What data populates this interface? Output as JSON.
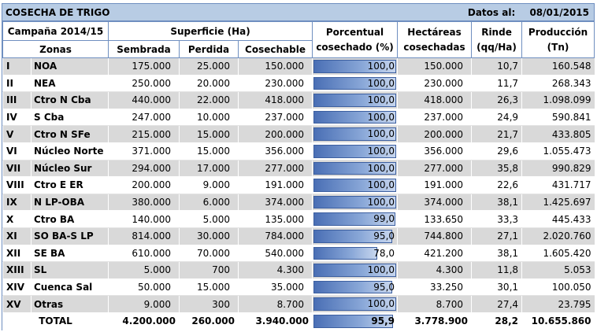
{
  "title": "COSECHA DE TRIGO",
  "date_label": "Datos al:",
  "date_value": "08/01/2015",
  "headers": {
    "campaign": "Campaña 2014/15",
    "zonas": "Zonas",
    "superficie": "Superficie (Ha)",
    "sembrada": "Sembrada",
    "perdida": "Perdida",
    "cosechable": "Cosechable",
    "porcentual": "Porcentual",
    "cosechado": "cosechado (%)",
    "hectareas": "Hectáreas",
    "cosechadas": "cosechadas",
    "rinde": "Rinde",
    "rinde_unit": "(qq/Ha)",
    "produccion": "Producción",
    "produccion_unit": "(Tn)"
  },
  "rows": [
    {
      "num": "I",
      "zona": "NOA",
      "sembrada": "175.000",
      "perdida": "25.000",
      "cosechable": "150.000",
      "pct": "100,0",
      "pct_value": 100.0,
      "hectareas": "150.000",
      "rinde": "10,7",
      "produccion": "160.548"
    },
    {
      "num": "II",
      "zona": "NEA",
      "sembrada": "250.000",
      "perdida": "20.000",
      "cosechable": "230.000",
      "pct": "100,0",
      "pct_value": 100.0,
      "hectareas": "230.000",
      "rinde": "11,7",
      "produccion": "268.343"
    },
    {
      "num": "III",
      "zona": "Ctro N Cba",
      "sembrada": "440.000",
      "perdida": "22.000",
      "cosechable": "418.000",
      "pct": "100,0",
      "pct_value": 100.0,
      "hectareas": "418.000",
      "rinde": "26,3",
      "produccion": "1.098.099"
    },
    {
      "num": "IV",
      "zona": "S Cba",
      "sembrada": "247.000",
      "perdida": "10.000",
      "cosechable": "237.000",
      "pct": "100,0",
      "pct_value": 100.0,
      "hectareas": "237.000",
      "rinde": "24,9",
      "produccion": "590.841"
    },
    {
      "num": "V",
      "zona": "Ctro N SFe",
      "sembrada": "215.000",
      "perdida": "15.000",
      "cosechable": "200.000",
      "pct": "100,0",
      "pct_value": 100.0,
      "hectareas": "200.000",
      "rinde": "21,7",
      "produccion": "433.805"
    },
    {
      "num": "VI",
      "zona": "Núcleo Norte",
      "sembrada": "371.000",
      "perdida": "15.000",
      "cosechable": "356.000",
      "pct": "100,0",
      "pct_value": 100.0,
      "hectareas": "356.000",
      "rinde": "29,6",
      "produccion": "1.055.473"
    },
    {
      "num": "VII",
      "zona": "Núcleo Sur",
      "sembrada": "294.000",
      "perdida": "17.000",
      "cosechable": "277.000",
      "pct": "100,0",
      "pct_value": 100.0,
      "hectareas": "277.000",
      "rinde": "35,8",
      "produccion": "990.829"
    },
    {
      "num": "VIII",
      "zona": "Ctro E ER",
      "sembrada": "200.000",
      "perdida": "9.000",
      "cosechable": "191.000",
      "pct": "100,0",
      "pct_value": 100.0,
      "hectareas": "191.000",
      "rinde": "22,6",
      "produccion": "431.717"
    },
    {
      "num": "IX",
      "zona": "N LP-OBA",
      "sembrada": "380.000",
      "perdida": "6.000",
      "cosechable": "374.000",
      "pct": "100,0",
      "pct_value": 100.0,
      "hectareas": "374.000",
      "rinde": "38,1",
      "produccion": "1.425.697"
    },
    {
      "num": "X",
      "zona": "Ctro BA",
      "sembrada": "140.000",
      "perdida": "5.000",
      "cosechable": "135.000",
      "pct": "99,0",
      "pct_value": 99.0,
      "hectareas": "133.650",
      "rinde": "33,3",
      "produccion": "445.433"
    },
    {
      "num": "XI",
      "zona": "SO BA-S LP",
      "sembrada": "814.000",
      "perdida": "30.000",
      "cosechable": "784.000",
      "pct": "95,0",
      "pct_value": 95.0,
      "hectareas": "744.800",
      "rinde": "27,1",
      "produccion": "2.020.760"
    },
    {
      "num": "XII",
      "zona": "SE BA",
      "sembrada": "610.000",
      "perdida": "70.000",
      "cosechable": "540.000",
      "pct": "78,0",
      "pct_value": 78.0,
      "hectareas": "421.200",
      "rinde": "38,1",
      "produccion": "1.605.420"
    },
    {
      "num": "XIII",
      "zona": "SL",
      "sembrada": "5.000",
      "perdida": "700",
      "cosechable": "4.300",
      "pct": "100,0",
      "pct_value": 100.0,
      "hectareas": "4.300",
      "rinde": "11,8",
      "produccion": "5.053"
    },
    {
      "num": "XIV",
      "zona": "Cuenca Sal",
      "sembrada": "50.000",
      "perdida": "15.000",
      "cosechable": "35.000",
      "pct": "95,0",
      "pct_value": 95.0,
      "hectareas": "33.250",
      "rinde": "30,1",
      "produccion": "100.050"
    },
    {
      "num": "XV",
      "zona": "Otras",
      "sembrada": "9.000",
      "perdida": "300",
      "cosechable": "8.700",
      "pct": "100,0",
      "pct_value": 100.0,
      "hectareas": "8.700",
      "rinde": "27,4",
      "produccion": "23.795"
    }
  ],
  "total": {
    "label": "TOTAL",
    "sembrada": "4.200.000",
    "perdida": "260.000",
    "cosechable": "3.940.000",
    "pct": "95,9",
    "pct_value": 95.9,
    "hectareas": "3.778.900",
    "rinde": "28,2",
    "produccion": "10.655.860"
  },
  "colors": {
    "header_bar": "#b8cce4",
    "border": "#6f8fc0",
    "row_shade": "#d9d9d9",
    "data_bar": "#4a6fb5"
  }
}
